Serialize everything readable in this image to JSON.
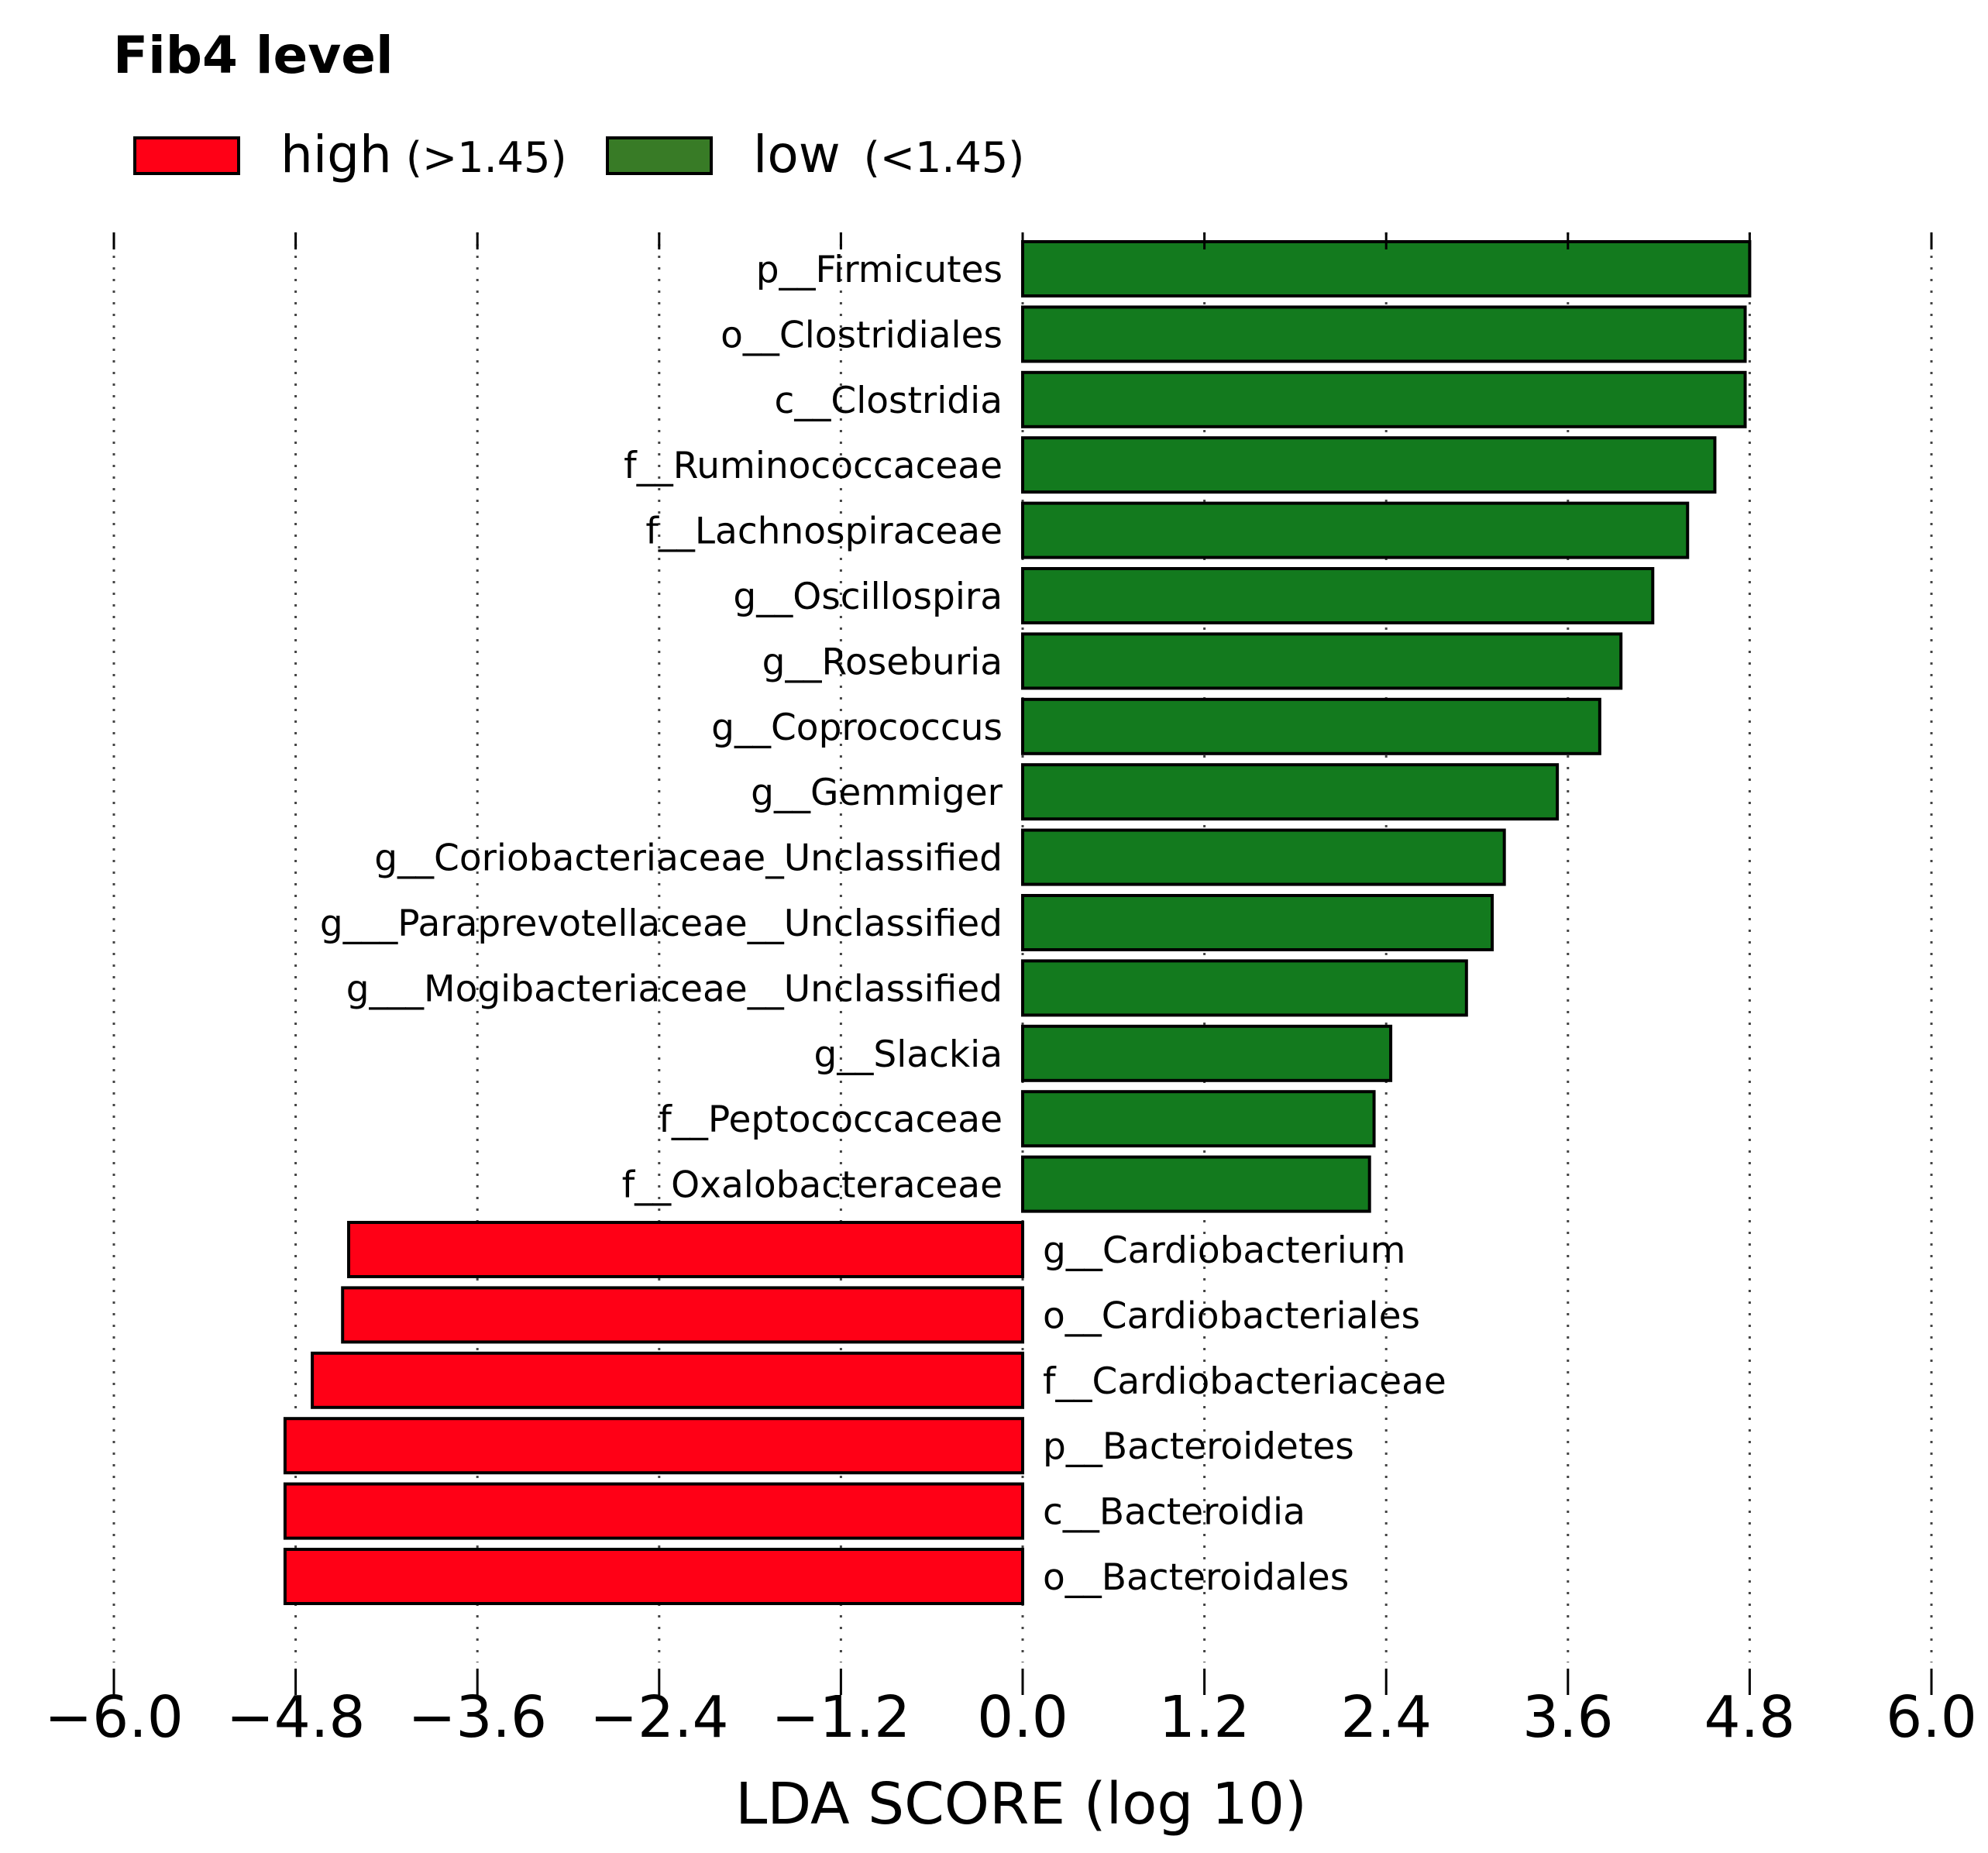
{
  "colors": {
    "high": "#ff0016",
    "low": "#137a1e",
    "legend_low": "#387b26",
    "bar_edge": "#000000",
    "grid": "#444444"
  },
  "chart_data": {
    "type": "bar",
    "orientation": "horizontal",
    "title": "Fib4 level",
    "xlabel": "LDA SCORE (log 10)",
    "ylabel": "",
    "xlim": [
      -6.0,
      6.0
    ],
    "xticks": [
      "−6.0",
      "−4.8",
      "−3.6",
      "−2.4",
      "−1.2",
      "0.0",
      "1.2",
      "2.4",
      "3.6",
      "4.8",
      "6.0"
    ],
    "xtick_values": [
      -6.0,
      -4.8,
      -3.6,
      -2.4,
      -1.2,
      0.0,
      1.2,
      2.4,
      3.6,
      4.8,
      6.0
    ],
    "grid": true,
    "legend": [
      {
        "name": "high",
        "qualifier": "(>1.45)",
        "color": "#ff0016"
      },
      {
        "name": "low",
        "qualifier": "(<1.45)",
        "color": "#387b26"
      }
    ],
    "categories": [
      "p__Firmicutes",
      "o__Clostridiales",
      "c__Clostridia",
      "f__Ruminococcaceae",
      "f__Lachnospiraceae",
      "g__Oscillospira",
      "g__Roseburia",
      "g__Coprococcus",
      "g__Gemmiger",
      "g__Coriobacteriaceae_Unclassified",
      "g___Paraprevotellaceae__Unclassified",
      "g___Mogibacteriaceae__Unclassified",
      "g__Slackia",
      "f__Peptococcaceae",
      "f__Oxalobacteraceae",
      "g__Cardiobacterium",
      "o__Cardiobacteriales",
      "f__Cardiobacteriaceae",
      "p__Bacteroidetes",
      "c__Bacteroidia",
      "o__Bacteroidales"
    ],
    "values": [
      4.8,
      4.77,
      4.77,
      4.57,
      4.39,
      4.16,
      3.95,
      3.81,
      3.53,
      3.18,
      3.1,
      2.93,
      2.43,
      2.32,
      2.29,
      -4.45,
      -4.49,
      -4.69,
      -4.87,
      -4.87,
      -4.87
    ],
    "groups": [
      "low",
      "low",
      "low",
      "low",
      "low",
      "low",
      "low",
      "low",
      "low",
      "low",
      "low",
      "low",
      "low",
      "low",
      "low",
      "high",
      "high",
      "high",
      "high",
      "high",
      "high"
    ]
  }
}
